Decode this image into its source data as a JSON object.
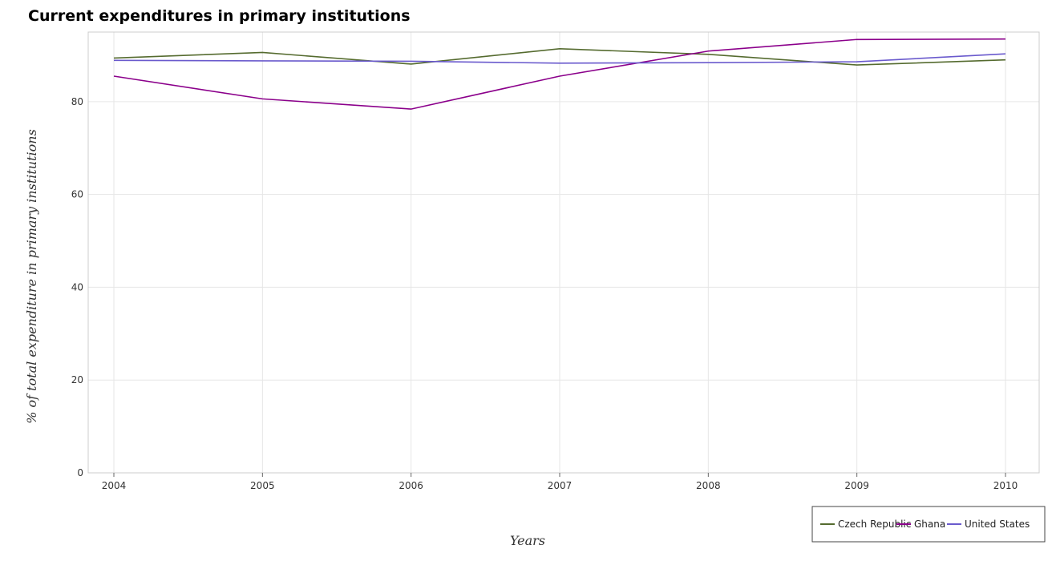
{
  "chart_data": {
    "type": "line",
    "title": "Current expenditures in primary institutions",
    "xlabel": "Years",
    "ylabel": "% of total expenditure in primary institutions",
    "categories": [
      "2004",
      "2005",
      "2006",
      "2007",
      "2008",
      "2009",
      "2010"
    ],
    "ylim": [
      0,
      95
    ],
    "yticks": [
      0,
      20,
      40,
      60,
      80
    ],
    "grid": true,
    "legend_position": "bottom-right",
    "series": [
      {
        "name": "Czech Republic",
        "color": "#556b2f",
        "values": [
          89.4,
          90.6,
          88.1,
          91.4,
          90.2,
          87.9,
          89.0
        ]
      },
      {
        "name": "Ghana",
        "color": "#8b008b",
        "values": [
          85.5,
          80.6,
          78.4,
          85.5,
          90.9,
          93.4,
          93.5
        ]
      },
      {
        "name": "United States",
        "color": "#6a5acd",
        "values": [
          88.9,
          88.8,
          88.7,
          88.3,
          88.4,
          88.6,
          90.3
        ]
      }
    ]
  }
}
